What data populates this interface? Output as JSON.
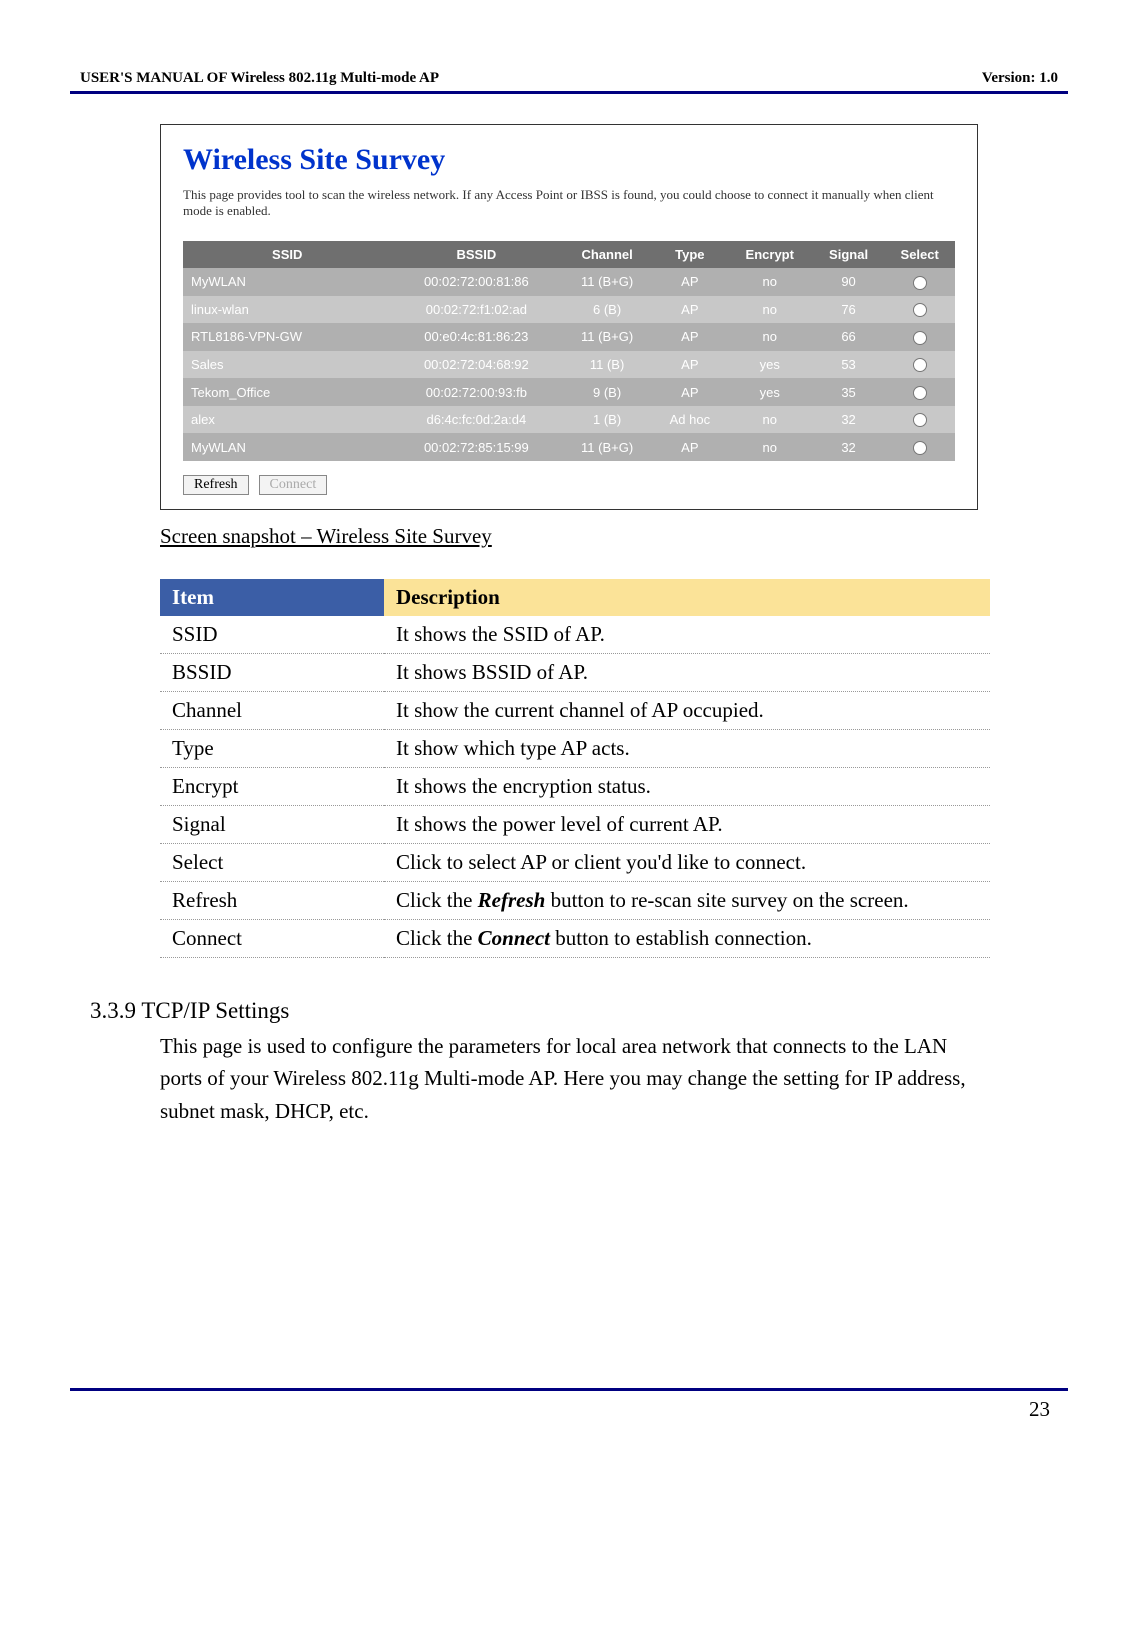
{
  "header": {
    "left": "USER'S MANUAL OF Wireless 802.11g Multi-mode AP",
    "right": "Version: 1.0"
  },
  "panel": {
    "title": "Wireless Site Survey",
    "desc": "This page provides tool to scan the wireless network. If any Access Point or IBSS is found, you could choose to connect it manually when client mode is enabled.",
    "cols": [
      "SSID",
      "BSSID",
      "Channel",
      "Type",
      "Encrypt",
      "Signal",
      "Select"
    ],
    "rows": [
      {
        "ssid": "MyWLAN",
        "bssid": "00:02:72:00:81:86",
        "ch": "11 (B+G)",
        "type": "AP",
        "enc": "no",
        "sig": "90"
      },
      {
        "ssid": "linux-wlan",
        "bssid": "00:02:72:f1:02:ad",
        "ch": "6 (B)",
        "type": "AP",
        "enc": "no",
        "sig": "76"
      },
      {
        "ssid": "RTL8186-VPN-GW",
        "bssid": "00:e0:4c:81:86:23",
        "ch": "11 (B+G)",
        "type": "AP",
        "enc": "no",
        "sig": "66"
      },
      {
        "ssid": "Sales",
        "bssid": "00:02:72:04:68:92",
        "ch": "11 (B)",
        "type": "AP",
        "enc": "yes",
        "sig": "53"
      },
      {
        "ssid": "Tekom_Office",
        "bssid": "00:02:72:00:93:fb",
        "ch": "9 (B)",
        "type": "AP",
        "enc": "yes",
        "sig": "35"
      },
      {
        "ssid": "alex",
        "bssid": "d6:4c:fc:0d:2a:d4",
        "ch": "1 (B)",
        "type": "Ad hoc",
        "enc": "no",
        "sig": "32"
      },
      {
        "ssid": "MyWLAN",
        "bssid": "00:02:72:85:15:99",
        "ch": "11 (B+G)",
        "type": "AP",
        "enc": "no",
        "sig": "32"
      }
    ],
    "refresh_label": "Refresh",
    "connect_label": "Connect"
  },
  "caption_under": "Screen snapshot – Wireless Site Survey",
  "desc_table": {
    "h1": "Item",
    "h2": "Description",
    "rows": [
      {
        "k": "SSID",
        "v": "It shows the SSID of AP."
      },
      {
        "k": "BSSID",
        "v": "It shows BSSID of AP."
      },
      {
        "k": "Channel",
        "v": "It show the current channel of AP occupied."
      },
      {
        "k": "Type",
        "v": "It show which type AP acts."
      },
      {
        "k": "Encrypt",
        "v": "It shows the encryption status."
      },
      {
        "k": "Signal",
        "v": "It shows the power level of current AP."
      },
      {
        "k": "Select",
        "v": "Click to select AP or client you'd like to connect."
      },
      {
        "k": "Refresh",
        "v_pre": "Click the ",
        "v_bi": "Refresh",
        "v_post": " button to re-scan site survey on the screen."
      },
      {
        "k": "Connect",
        "v_pre": "Click the ",
        "v_bi": "Connect",
        "v_post": " button to establish connection."
      }
    ]
  },
  "section": {
    "heading": "3.3.9  TCP/IP Settings",
    "body": "This page is used to configure the parameters for local area network that connects to the LAN ports of your Wireless 802.11g Multi-mode AP. Here you may change the setting for IP address, subnet mask, DHCP, etc."
  },
  "page_number": "23"
}
